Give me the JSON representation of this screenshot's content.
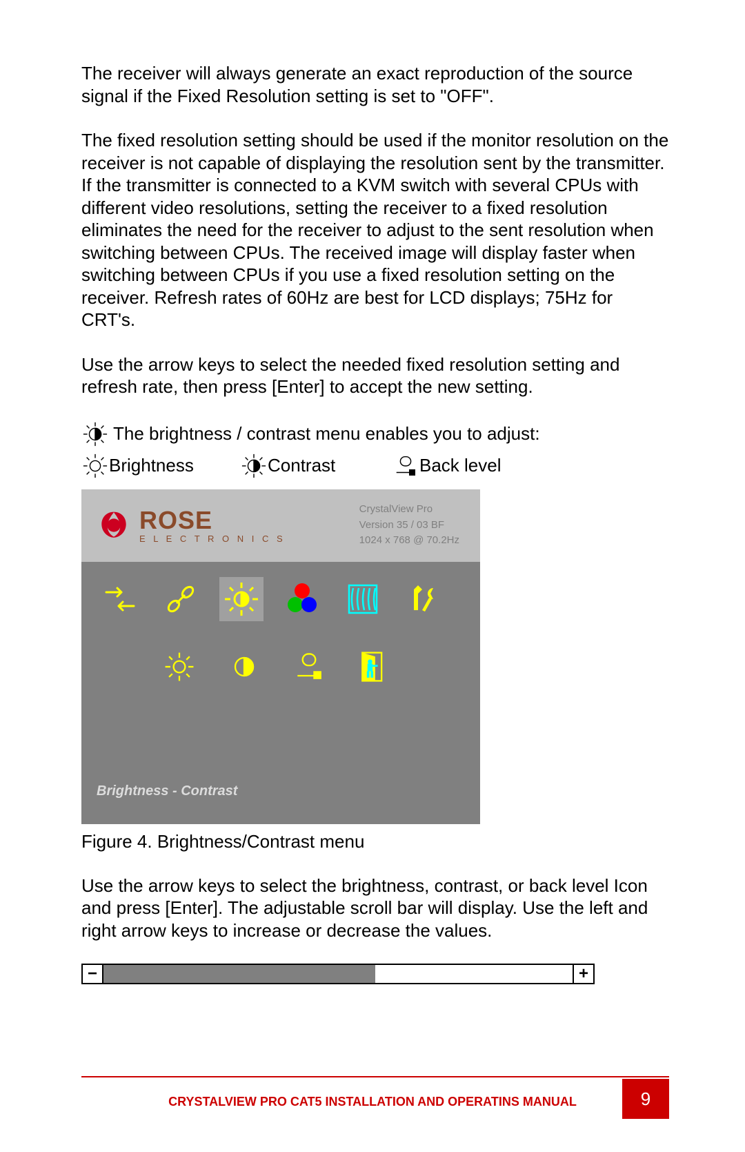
{
  "para1": "The receiver will always generate an exact reproduction of the source signal if the Fixed Resolution setting is set to \"OFF\".",
  "para2": "The fixed resolution setting should be used if the monitor resolution on the receiver is not capable of displaying the resolution sent by the transmitter.  If the transmitter is connected to a KVM switch with several CPUs with different video resolutions, setting the receiver to a fixed resolution eliminates the need for the receiver to adjust to the sent resolution when switching between CPUs. The received image will display faster when switching between CPUs if you use a fixed resolution setting on the receiver. Refresh rates of 60Hz are best for LCD displays; 75Hz for CRT's.",
  "para3": "Use the arrow keys to select the needed fixed resolution setting and refresh rate, then press [Enter] to accept the new setting.",
  "iconrow1_text": "The brightness / contrast menu enables you to adjust:",
  "labels": {
    "brightness": "Brightness",
    "contrast": "Contrast",
    "backlevel": "Back level"
  },
  "menu": {
    "logo_main": "ROSE",
    "logo_sub": "E L E C T R O N I C S",
    "info_line1": "CrystalView Pro",
    "info_line2": "Version 35 / 03 BF",
    "info_line3": "1024 x 768 @ 70.2Hz",
    "footer": "Brightness - Contrast",
    "colors": {
      "panel_bg": "#808080",
      "header_bg": "#c0c0c0",
      "selected_bg": "#a0a0a0",
      "icon_yellow": "#ffff00",
      "icon_cyan": "#00ffff",
      "rgb_red": "#ff0000",
      "rgb_green": "#00c000",
      "rgb_blue": "#0000ff",
      "logo_brown": "#8a4a2a",
      "rose_red": "#cc0020"
    }
  },
  "caption": "Figure 4. Brightness/Contrast menu",
  "para4": "Use the arrow keys to select the brightness, contrast, or back level Icon and press [Enter].  The adjustable scroll bar will display.  Use the left and right arrow keys to increase or decrease the values.",
  "scrollbar": {
    "fill_percent": 58,
    "track_bg": "#ffffff",
    "fill_color": "#808080"
  },
  "footer": {
    "text": "CRYSTALVIEW PRO CAT5 INSTALLATION AND OPERATINS MANUAL",
    "page": "9",
    "color": "#cc0000"
  }
}
